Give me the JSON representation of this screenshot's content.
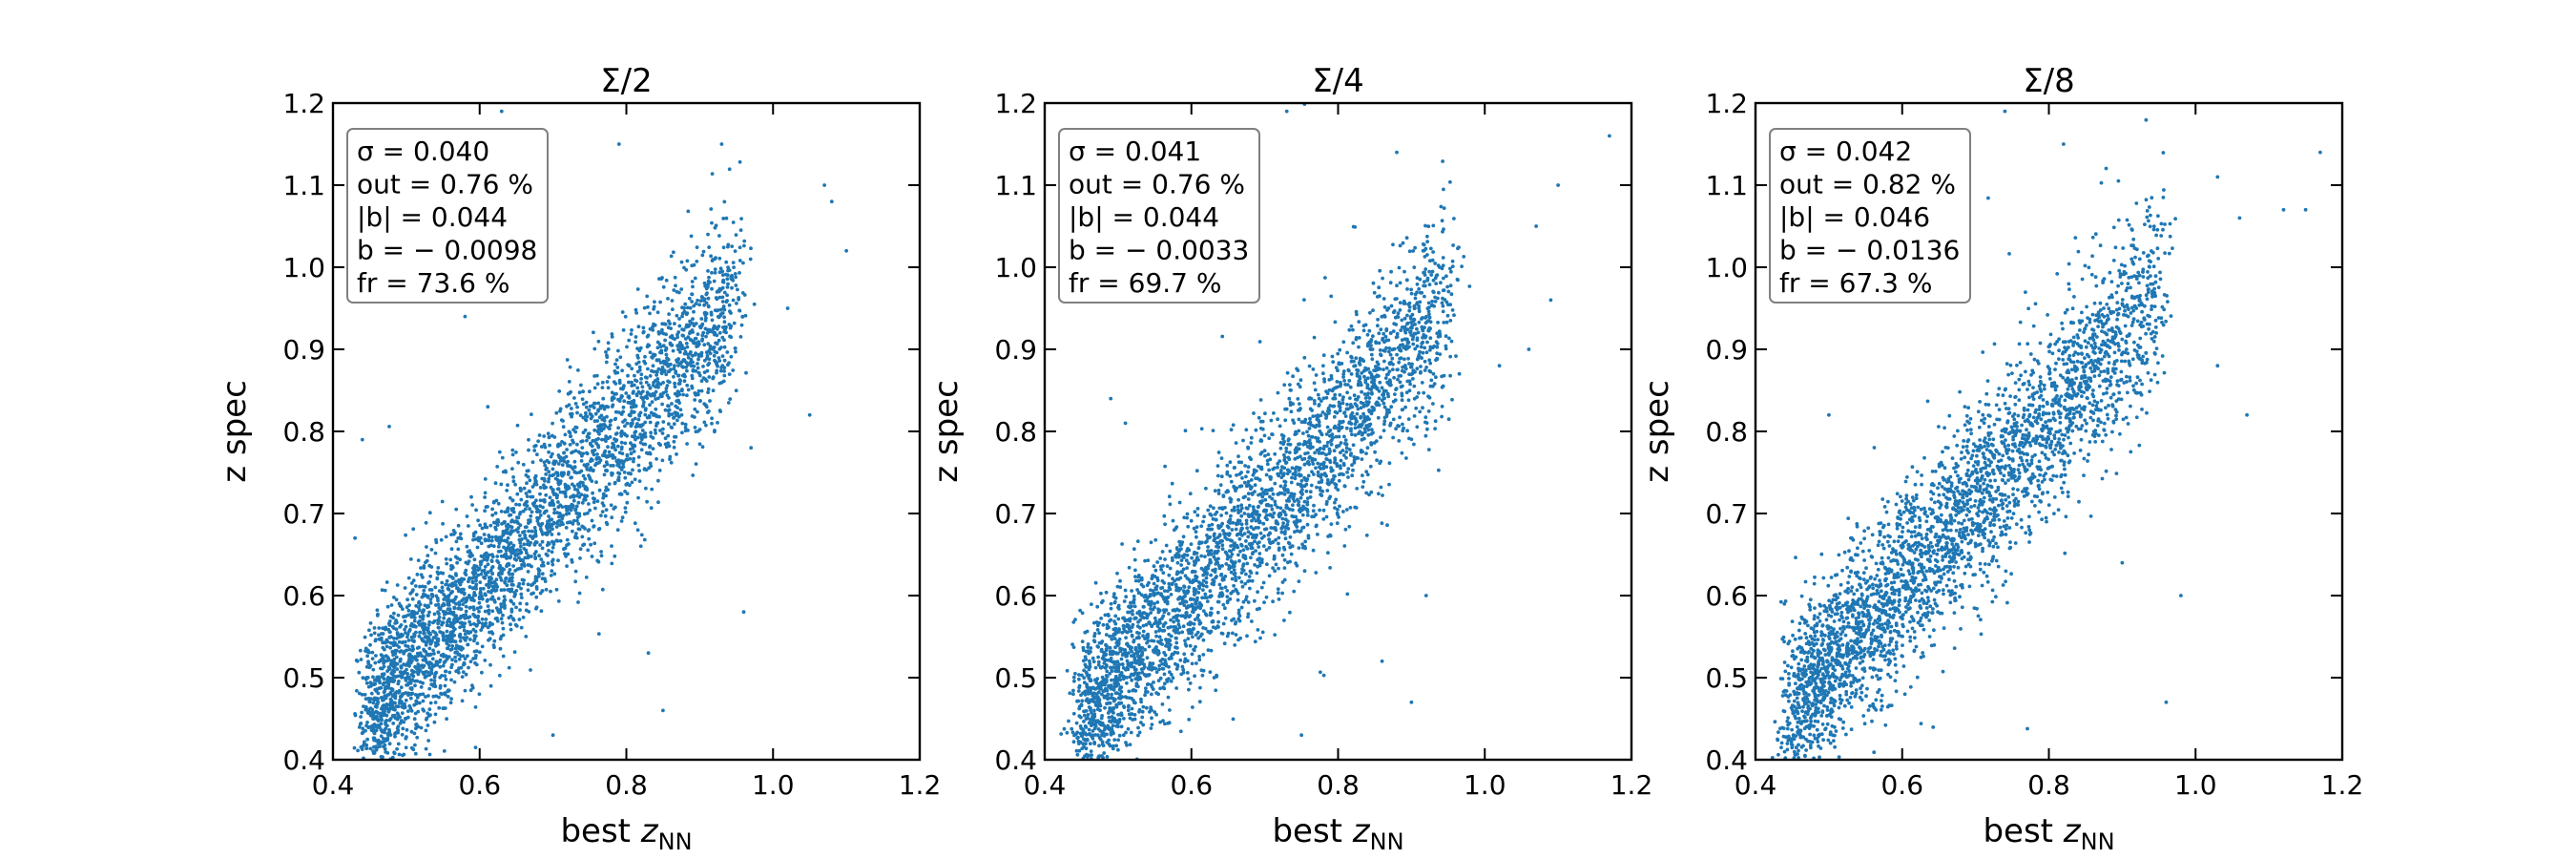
{
  "chart_data": [
    {
      "type": "scatter",
      "title": "Σ/2",
      "xlabel_main": "best ",
      "xlabel_var": "z",
      "xlabel_sub": "NN",
      "ylabel": "z spec",
      "xlim": [
        0.4,
        1.2
      ],
      "ylim": [
        0.4,
        1.2
      ],
      "xticks": [
        "0.4",
        "0.6",
        "0.8",
        "1.0",
        "1.2"
      ],
      "yticks": [
        "0.4",
        "0.5",
        "0.6",
        "0.7",
        "0.8",
        "0.9",
        "1.0",
        "1.1",
        "1.2"
      ],
      "color": "#1f77b4",
      "stats": [
        "σ = 0.040",
        "out = 0.76 %",
        "|b| = 0.044",
        "b = − 0.0098",
        "fr = 73.6 %"
      ],
      "sigma": 0.04,
      "bias": -0.0098,
      "n_points": 3500,
      "x_range_data": [
        0.45,
        0.95
      ],
      "outliers": [
        [
          0.63,
          1.19
        ],
        [
          0.79,
          1.15
        ],
        [
          0.93,
          1.15
        ],
        [
          1.07,
          1.1
        ],
        [
          1.08,
          1.08
        ],
        [
          1.1,
          1.02
        ],
        [
          1.02,
          0.95
        ],
        [
          1.05,
          0.82
        ],
        [
          0.85,
          0.46
        ],
        [
          0.97,
          0.78
        ],
        [
          0.58,
          0.94
        ],
        [
          0.43,
          0.67
        ],
        [
          0.44,
          0.79
        ],
        [
          0.7,
          0.43
        ],
        [
          0.96,
          0.58
        ],
        [
          0.83,
          0.53
        ]
      ]
    },
    {
      "type": "scatter",
      "title": "Σ/4",
      "xlabel_main": "best ",
      "xlabel_var": "z",
      "xlabel_sub": "NN",
      "ylabel": "z spec",
      "xlim": [
        0.4,
        1.2
      ],
      "ylim": [
        0.4,
        1.2
      ],
      "xticks": [
        "0.4",
        "0.6",
        "0.8",
        "1.0",
        "1.2"
      ],
      "yticks": [
        "0.4",
        "0.5",
        "0.6",
        "0.7",
        "0.8",
        "0.9",
        "1.0",
        "1.1",
        "1.2"
      ],
      "color": "#1f77b4",
      "stats": [
        "σ = 0.041",
        "out = 0.76 %",
        "|b| = 0.044",
        "b = − 0.0033",
        "fr = 69.7 %"
      ],
      "sigma": 0.041,
      "bias": -0.0033,
      "n_points": 3300,
      "x_range_data": [
        0.45,
        0.95
      ],
      "outliers": [
        [
          0.73,
          1.19
        ],
        [
          0.88,
          1.14
        ],
        [
          1.17,
          1.16
        ],
        [
          1.1,
          1.1
        ],
        [
          1.07,
          1.05
        ],
        [
          1.09,
          0.96
        ],
        [
          1.06,
          0.9
        ],
        [
          0.49,
          0.84
        ],
        [
          0.51,
          0.81
        ],
        [
          0.92,
          0.6
        ],
        [
          0.86,
          0.52
        ],
        [
          0.9,
          0.47
        ],
        [
          0.75,
          0.43
        ],
        [
          1.02,
          0.88
        ]
      ]
    },
    {
      "type": "scatter",
      "title": "Σ/8",
      "xlabel_main": "best ",
      "xlabel_var": "z",
      "xlabel_sub": "NN",
      "ylabel": "z spec",
      "xlim": [
        0.4,
        1.2
      ],
      "ylim": [
        0.4,
        1.2
      ],
      "xticks": [
        "0.4",
        "0.6",
        "0.8",
        "1.0",
        "1.2"
      ],
      "yticks": [
        "0.4",
        "0.5",
        "0.6",
        "0.7",
        "0.8",
        "0.9",
        "1.0",
        "1.1",
        "1.2"
      ],
      "color": "#1f77b4",
      "stats": [
        "σ = 0.042",
        "out = 0.82 %",
        "|b| = 0.046",
        "b = − 0.0136",
        "fr = 67.3 %"
      ],
      "sigma": 0.042,
      "bias": -0.0136,
      "n_points": 3300,
      "x_range_data": [
        0.45,
        0.95
      ],
      "outliers": [
        [
          0.74,
          1.19
        ],
        [
          0.82,
          1.15
        ],
        [
          1.17,
          1.14
        ],
        [
          1.12,
          1.07
        ],
        [
          1.15,
          1.07
        ],
        [
          1.06,
          1.06
        ],
        [
          1.03,
          1.11
        ],
        [
          1.07,
          0.82
        ],
        [
          1.03,
          0.88
        ],
        [
          0.98,
          0.6
        ],
        [
          0.96,
          0.47
        ],
        [
          0.5,
          0.82
        ],
        [
          0.53,
          0.67
        ],
        [
          0.9,
          0.64
        ]
      ]
    }
  ]
}
